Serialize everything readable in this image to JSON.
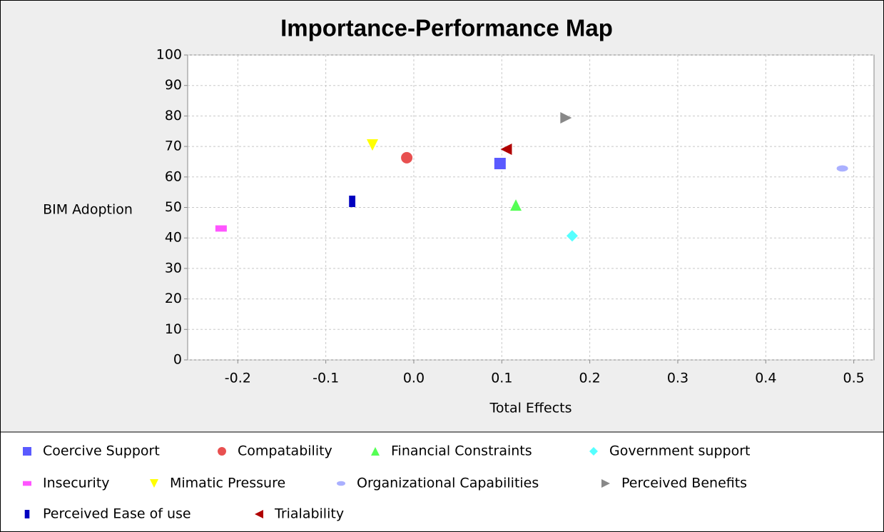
{
  "chart_data": {
    "type": "scatter",
    "title": "Importance-Performance Map",
    "x_label": "Total Effects",
    "y_label": "BIM Adoption",
    "xlim": [
      -0.257,
      0.523
    ],
    "ylim": [
      0,
      100
    ],
    "xticks": [
      -0.2,
      -0.1,
      {
        "value": 0,
        "label": "0.0"
      },
      0.1,
      0.2,
      0.3,
      0.4,
      0.5
    ],
    "yticks": [
      0,
      10,
      20,
      30,
      40,
      50,
      60,
      70,
      80,
      90,
      100
    ],
    "grid": true,
    "series": [
      {
        "name": "Coercive Support",
        "color": "#5a5aff",
        "marker": "square",
        "x": [
          0.098
        ],
        "values": [
          64.4
        ]
      },
      {
        "name": "Compatability",
        "color": "#e85050",
        "marker": "circle",
        "x": [
          -0.008
        ],
        "values": [
          66.3
        ]
      },
      {
        "name": "Financial Constraints",
        "color": "#55ff55",
        "marker": "triangle-up",
        "x": [
          0.116
        ],
        "values": [
          50.8
        ]
      },
      {
        "name": "Government support",
        "color": "#55ffff",
        "marker": "diamond",
        "x": [
          0.18
        ],
        "values": [
          40.7
        ]
      },
      {
        "name": "Insecurity",
        "color": "#ff55ff",
        "marker": "hbar",
        "x": [
          -0.219
        ],
        "values": [
          43.1
        ]
      },
      {
        "name": "Mimatic Pressure",
        "color": "#ffff00",
        "marker": "triangle-down",
        "x": [
          -0.047
        ],
        "values": [
          70.5
        ]
      },
      {
        "name": "Organizational Capabilities",
        "color": "#aab0ff",
        "marker": "ellipse",
        "x": [
          0.487
        ],
        "values": [
          62.8
        ]
      },
      {
        "name": "Perceived Benefits",
        "color": "#888888",
        "marker": "triangle-right",
        "x": [
          0.173
        ],
        "values": [
          79.4
        ]
      },
      {
        "name": "Perceived Ease of use",
        "color": "#0000c0",
        "marker": "vbar",
        "x": [
          -0.07
        ],
        "values": [
          52.0
        ]
      },
      {
        "name": "Trialability",
        "color": "#b00000",
        "marker": "triangle-left",
        "x": [
          0.105
        ],
        "values": [
          69.1
        ]
      }
    ]
  }
}
